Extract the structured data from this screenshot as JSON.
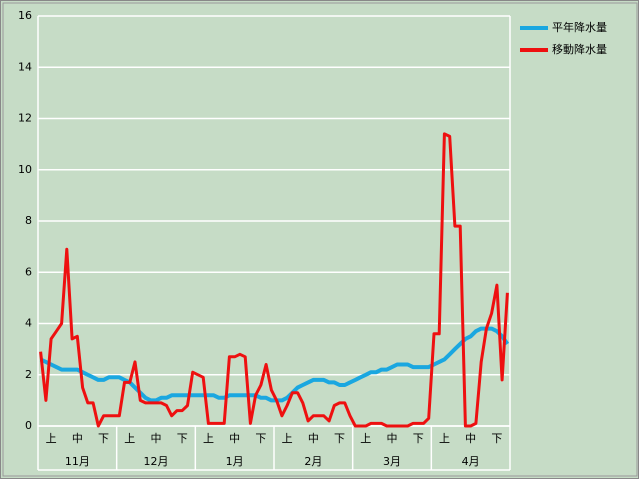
{
  "chart_data": {
    "type": "line",
    "categories": [
      null,
      null,
      "上",
      null,
      null,
      null,
      null,
      "中",
      null,
      null,
      null,
      null,
      "下",
      null,
      null,
      null,
      null,
      "上",
      null,
      null,
      null,
      null,
      "中",
      null,
      null,
      null,
      null,
      "下",
      null,
      null,
      null,
      null,
      "上",
      null,
      null,
      null,
      null,
      "中",
      null,
      null,
      null,
      null,
      "下",
      null,
      null,
      null,
      null,
      "上",
      null,
      null,
      null,
      null,
      "中",
      null,
      null,
      null,
      null,
      "下",
      null,
      null,
      null,
      null,
      "上",
      null,
      null,
      null,
      null,
      "中",
      null,
      null,
      null,
      null,
      "下",
      null,
      null,
      null,
      null,
      "上",
      null,
      null,
      null,
      null,
      "中",
      null,
      null,
      null,
      null,
      "下",
      null,
      null
    ],
    "groups": [
      "11月",
      "12月",
      "1月",
      "2月",
      "3月",
      "4月"
    ],
    "series": [
      {
        "name": "平年降水量",
        "color": "#1aa7e0",
        "values": [
          2.6,
          2.5,
          2.4,
          2.3,
          2.2,
          2.2,
          2.2,
          2.2,
          2.1,
          2.0,
          1.9,
          1.8,
          1.8,
          1.9,
          1.9,
          1.9,
          1.8,
          1.7,
          1.5,
          1.3,
          1.1,
          1.0,
          1.0,
          1.1,
          1.1,
          1.2,
          1.2,
          1.2,
          1.2,
          1.2,
          1.2,
          1.2,
          1.2,
          1.2,
          1.1,
          1.1,
          1.2,
          1.2,
          1.2,
          1.2,
          1.2,
          1.2,
          1.1,
          1.1,
          1.0,
          1.0,
          1.0,
          1.1,
          1.3,
          1.5,
          1.6,
          1.7,
          1.8,
          1.8,
          1.8,
          1.7,
          1.7,
          1.6,
          1.6,
          1.7,
          1.8,
          1.9,
          2.0,
          2.1,
          2.1,
          2.2,
          2.2,
          2.3,
          2.4,
          2.4,
          2.4,
          2.3,
          2.3,
          2.3,
          2.3,
          2.4,
          2.5,
          2.6,
          2.8,
          3.0,
          3.2,
          3.4,
          3.5,
          3.7,
          3.8,
          3.8,
          3.8,
          3.7,
          3.5,
          3.2
        ]
      },
      {
        "name": "移動降水量",
        "color": "#ee1010",
        "values": [
          2.9,
          1.0,
          3.4,
          3.7,
          4.0,
          6.9,
          3.4,
          3.5,
          1.5,
          0.9,
          0.9,
          0.0,
          0.4,
          0.4,
          0.4,
          0.4,
          1.7,
          1.7,
          2.5,
          1.0,
          0.9,
          0.9,
          0.9,
          0.9,
          0.8,
          0.4,
          0.6,
          0.6,
          0.8,
          2.1,
          2.0,
          1.9,
          0.1,
          0.1,
          0.1,
          0.1,
          2.7,
          2.7,
          2.8,
          2.7,
          0.1,
          1.2,
          1.6,
          2.4,
          1.4,
          1.0,
          0.4,
          0.8,
          1.3,
          1.3,
          0.9,
          0.2,
          0.4,
          0.4,
          0.4,
          0.2,
          0.8,
          0.9,
          0.9,
          0.4,
          0.0,
          0.0,
          0.0,
          0.1,
          0.1,
          0.1,
          0.0,
          0.0,
          0.0,
          0.0,
          0.0,
          0.1,
          0.1,
          0.1,
          0.3,
          3.6,
          3.6,
          11.4,
          11.3,
          7.8,
          7.8,
          0.0,
          0.0,
          0.1,
          2.5,
          3.8,
          4.4,
          5.5,
          1.8,
          5.2
        ]
      }
    ],
    "ylim": [
      0,
      16
    ],
    "yticks": [
      0,
      2,
      4,
      6,
      8,
      10,
      12,
      14,
      16
    ],
    "grid": true,
    "legend": "top-right"
  }
}
